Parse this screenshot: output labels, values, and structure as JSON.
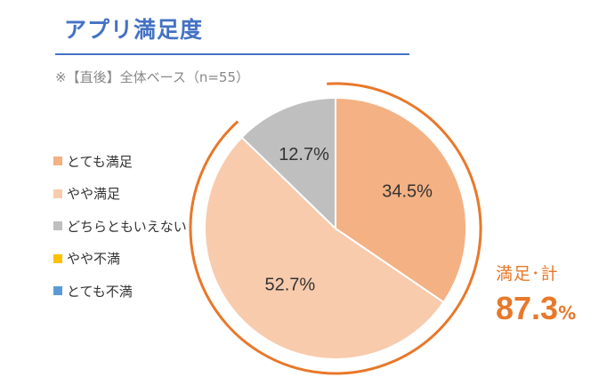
{
  "chart_data": {
    "type": "pie",
    "title": "アプリ満足度",
    "subtitle": "※【直後】全体ベース（n=55）",
    "legend_position": "left",
    "categories": [
      "とても満足",
      "やや満足",
      "どちらともいえない",
      "やや不満",
      "とても不満"
    ],
    "values": [
      34.5,
      52.7,
      12.7,
      0,
      0
    ],
    "value_labels": [
      "34.5%",
      "52.7%",
      "12.7%",
      "",
      ""
    ],
    "colors": [
      "#F4B183",
      "#F8CBAD",
      "#BFBFBF",
      "#FFC000",
      "#5B9BD5"
    ],
    "annotation": {
      "label": "満足･計",
      "value": "87.3",
      "unit": "%",
      "color": "#E8782A"
    }
  }
}
